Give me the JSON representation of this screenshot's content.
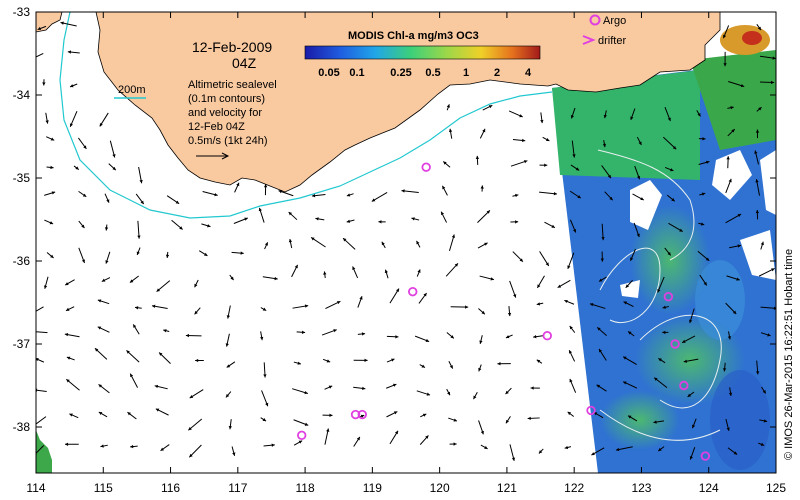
{
  "map": {
    "date": "12-Feb-2009",
    "time": "04Z",
    "contour_legend_label": "200m",
    "contour_color": "#22c8d0",
    "altimetry_text": [
      "Altimetric sealevel",
      "(0.1m contours)",
      "and velocity for",
      "12-Feb 04Z",
      "0.5m/s (1kt 24h)"
    ],
    "colorbar": {
      "title": "MODIS Chl-a mg/m3 OC3",
      "ticks": [
        "0.05",
        "0.1",
        "0.25",
        "0.5",
        "1",
        "2",
        "4"
      ],
      "colors": [
        "#1a1aa8",
        "#1f5de0",
        "#21a6e8",
        "#3ccf7a",
        "#9ad84a",
        "#f0d028",
        "#e6731e",
        "#a21a1a"
      ]
    },
    "legend": {
      "argo": "Argo",
      "drifter": "drifter",
      "marker_color": "#e040e0"
    },
    "land_color": "#f9c9a0",
    "x_ticks": [
      "114",
      "115",
      "116",
      "117",
      "118",
      "119",
      "120",
      "121",
      "122",
      "123",
      "124",
      "125"
    ],
    "y_ticks": [
      "-33",
      "-34",
      "-35",
      "-36",
      "-37",
      "-38"
    ],
    "credit": "© IMOS 26-Mar-2015 16:22:51 Hobart time",
    "argo_floats": [
      {
        "lon": 119.8,
        "lat": -34.87
      },
      {
        "lon": 119.6,
        "lat": -36.37
      },
      {
        "lon": 121.6,
        "lat": -36.9
      },
      {
        "lon": 123.4,
        "lat": -36.43
      },
      {
        "lon": 123.5,
        "lat": -37.0
      },
      {
        "lon": 123.63,
        "lat": -37.5
      },
      {
        "lon": 122.25,
        "lat": -37.8
      },
      {
        "lon": 118.75,
        "lat": -37.85
      },
      {
        "lon": 118.85,
        "lat": -37.85
      },
      {
        "lon": 117.95,
        "lat": -38.1
      },
      {
        "lon": 123.95,
        "lat": -38.35
      }
    ]
  }
}
